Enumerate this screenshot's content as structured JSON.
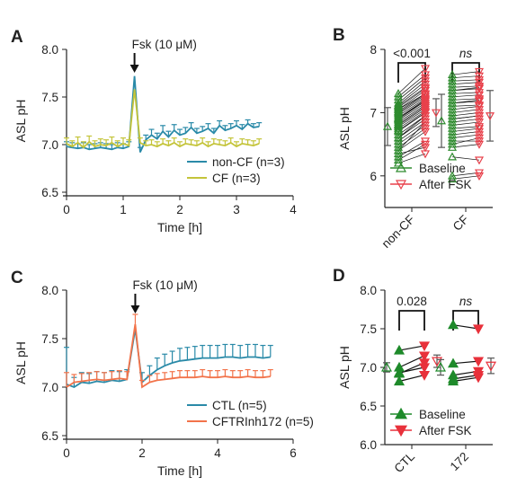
{
  "colors": {
    "non_cf": "#2a8aa8",
    "cf": "#c4c43a",
    "ctl": "#2a8aa8",
    "cftrinh": "#f2734a",
    "baseline": "#2e8b2e",
    "after": "#e8414b",
    "dark_green": "#1e8a2a",
    "dark_red": "#e8313b",
    "axis": "#222222",
    "summary": "#555555"
  },
  "icons": {
    "arrow": "down-arrow-icon"
  },
  "chart_data": [
    {
      "id": "A",
      "panel_label": "A",
      "type": "line",
      "xlabel": "Time [h]",
      "ylabel": "ASL pH",
      "xlim": [
        0,
        4
      ],
      "ylim": [
        6.5,
        8.0
      ],
      "xticks": [
        "0",
        "1",
        "2",
        "3",
        "4"
      ],
      "yticks": [
        "6.5",
        "7.0",
        "7.5",
        "8.0"
      ],
      "annotation": "Fsk (10 μM)",
      "annotation_x": 1.2,
      "series": [
        {
          "name": "non-CF (n=3)",
          "color_key": "non_cf",
          "x": [
            0.0,
            0.1,
            0.2,
            0.3,
            0.4,
            0.5,
            0.6,
            0.7,
            0.8,
            0.9,
            1.0,
            1.1,
            1.2,
            1.3,
            1.4,
            1.5,
            1.6,
            1.7,
            1.8,
            1.9,
            2.0,
            2.1,
            2.2,
            2.3,
            2.4,
            2.5,
            2.6,
            2.7,
            2.8,
            2.9,
            3.0,
            3.1,
            3.2,
            3.3,
            3.4
          ],
          "y": [
            6.98,
            6.97,
            6.96,
            6.97,
            6.95,
            6.96,
            6.97,
            6.96,
            6.95,
            6.97,
            6.96,
            6.98,
            7.72,
            6.92,
            7.05,
            7.1,
            7.06,
            7.14,
            7.08,
            7.15,
            7.1,
            7.12,
            7.18,
            7.12,
            7.14,
            7.17,
            7.12,
            7.2,
            7.15,
            7.17,
            7.2,
            7.16,
            7.22,
            7.18,
            7.19
          ],
          "err_up": [
            0.05,
            0.05,
            0.05,
            0.05,
            0.05,
            0.05,
            0.05,
            0.05,
            0.05,
            0.05,
            0.05,
            0.05,
            0.0,
            0.05,
            0.05,
            0.06,
            0.06,
            0.06,
            0.06,
            0.06,
            0.06,
            0.06,
            0.05,
            0.05,
            0.05,
            0.05,
            0.05,
            0.05,
            0.05,
            0.05,
            0.05,
            0.05,
            0.04,
            0.04,
            0.04
          ]
        },
        {
          "name": "CF (n=3)",
          "color_key": "cf",
          "x": [
            0.0,
            0.1,
            0.2,
            0.3,
            0.4,
            0.5,
            0.6,
            0.7,
            0.8,
            0.9,
            1.0,
            1.1,
            1.2,
            1.3,
            1.4,
            1.5,
            1.6,
            1.7,
            1.8,
            1.9,
            2.0,
            2.1,
            2.2,
            2.3,
            2.4,
            2.5,
            2.6,
            2.7,
            2.8,
            2.9,
            3.0,
            3.1,
            3.2,
            3.3,
            3.4
          ],
          "y": [
            7.01,
            6.98,
            7.02,
            6.97,
            7.03,
            6.98,
            7.0,
            6.99,
            7.02,
            6.98,
            7.01,
            6.99,
            7.58,
            7.02,
            6.99,
            7.0,
            6.98,
            7.01,
            6.99,
            7.02,
            6.98,
            7.01,
            7.0,
            6.99,
            7.02,
            6.98,
            7.01,
            7.0,
            6.99,
            7.02,
            6.98,
            7.01,
            7.0,
            6.99,
            7.01
          ],
          "err_up": [
            0.06,
            0.06,
            0.06,
            0.06,
            0.06,
            0.06,
            0.06,
            0.06,
            0.06,
            0.06,
            0.06,
            0.06,
            0.0,
            0.05,
            0.05,
            0.05,
            0.05,
            0.05,
            0.05,
            0.05,
            0.05,
            0.05,
            0.05,
            0.05,
            0.05,
            0.05,
            0.05,
            0.05,
            0.05,
            0.05,
            0.05,
            0.05,
            0.05,
            0.05,
            0.05
          ]
        }
      ],
      "legend_position": "bottom-right"
    },
    {
      "id": "B",
      "panel_label": "B",
      "type": "scatter",
      "ylabel": "ASL pH",
      "ylim": [
        5.5,
        8.0
      ],
      "yticks": [
        "6",
        "7",
        "8"
      ],
      "categories": [
        "non-CF",
        "CF"
      ],
      "brackets": [
        {
          "text": "<0.001",
          "category": 0,
          "italic": false
        },
        {
          "text": "ns",
          "category": 1,
          "italic": true
        }
      ],
      "series": [
        {
          "name": "Baseline",
          "color_key": "baseline"
        },
        {
          "name": "After FSK",
          "color_key": "after"
        }
      ],
      "summary": [
        {
          "category": 0,
          "baseline_mean": 6.78,
          "baseline_sd": 0.3,
          "after_mean": 7.0,
          "after_sd": 0.22
        },
        {
          "category": 1,
          "baseline_mean": 6.87,
          "baseline_sd": 0.42,
          "after_mean": 6.95,
          "after_sd": 0.4
        }
      ],
      "pairs": [
        {
          "category": 0,
          "baseline": [
            6.2,
            6.3,
            6.4,
            6.45,
            6.5,
            6.55,
            6.6,
            6.65,
            6.7,
            6.72,
            6.75,
            6.78,
            6.8,
            6.82,
            6.85,
            6.88,
            6.9,
            6.92,
            6.95,
            6.98,
            7.0,
            7.02,
            7.05,
            7.08,
            7.1,
            7.12,
            7.15,
            7.2,
            7.25,
            7.3,
            6.25,
            6.4,
            6.6,
            6.9,
            7.05,
            6.35
          ],
          "after": [
            6.35,
            6.55,
            6.7,
            6.75,
            6.8,
            6.85,
            6.9,
            6.95,
            7.0,
            7.0,
            7.02,
            7.05,
            7.08,
            7.1,
            7.12,
            7.15,
            7.18,
            7.2,
            7.22,
            7.25,
            7.28,
            7.3,
            7.35,
            7.38,
            7.4,
            7.45,
            7.5,
            7.55,
            7.6,
            7.7,
            6.5,
            6.85,
            6.95,
            7.2,
            7.3,
            6.45
          ]
        },
        {
          "category": 1,
          "baseline": [
            5.95,
            6.0,
            6.3,
            6.45,
            6.55,
            6.6,
            6.65,
            6.7,
            6.75,
            6.8,
            6.85,
            6.9,
            6.95,
            7.0,
            7.05,
            7.1,
            7.15,
            7.2,
            7.25,
            7.3,
            7.35,
            7.4,
            7.45,
            7.5,
            7.55,
            7.6,
            6.5,
            6.9,
            7.15,
            7.35
          ],
          "after": [
            6.0,
            6.05,
            6.25,
            6.5,
            6.55,
            6.65,
            6.7,
            6.75,
            6.78,
            6.85,
            6.9,
            6.95,
            7.0,
            7.05,
            7.1,
            7.12,
            7.18,
            7.22,
            7.28,
            7.32,
            7.38,
            7.42,
            7.48,
            7.52,
            7.58,
            7.65,
            6.6,
            6.95,
            7.2,
            7.4
          ]
        }
      ],
      "legend_position": "bottom"
    },
    {
      "id": "C",
      "panel_label": "C",
      "type": "line",
      "xlabel": "Time [h]",
      "ylabel": "ASL pH",
      "xlim": [
        0,
        6
      ],
      "ylim": [
        6.5,
        8.0
      ],
      "xticks": [
        "0",
        "2",
        "4",
        "6"
      ],
      "yticks": [
        "6.5",
        "7.0",
        "7.5",
        "8.0"
      ],
      "annotation": "Fsk (10 μM)",
      "annotation_x": 1.82,
      "series": [
        {
          "name": "CTL     (n=5)",
          "color_key": "ctl",
          "x": [
            0.0,
            0.2,
            0.4,
            0.6,
            0.8,
            1.0,
            1.2,
            1.4,
            1.6,
            1.82,
            2.0,
            2.2,
            2.4,
            2.6,
            2.8,
            3.0,
            3.2,
            3.4,
            3.6,
            3.8,
            4.0,
            4.2,
            4.4,
            4.6,
            4.8,
            5.0,
            5.2,
            5.4
          ],
          "y": [
            7.03,
            7.0,
            7.05,
            7.04,
            7.06,
            7.05,
            7.07,
            7.06,
            7.08,
            7.6,
            7.05,
            7.12,
            7.18,
            7.22,
            7.25,
            7.27,
            7.28,
            7.29,
            7.3,
            7.3,
            7.3,
            7.31,
            7.31,
            7.3,
            7.31,
            7.31,
            7.3,
            7.31
          ],
          "err_up": [
            0.38,
            0.1,
            0.1,
            0.1,
            0.1,
            0.1,
            0.1,
            0.1,
            0.1,
            0.0,
            0.1,
            0.1,
            0.12,
            0.12,
            0.12,
            0.13,
            0.13,
            0.13,
            0.13,
            0.13,
            0.13,
            0.13,
            0.13,
            0.13,
            0.13,
            0.13,
            0.13,
            0.12
          ]
        },
        {
          "name": "CFTRInh172 (n=5)",
          "color_key": "cftrinh",
          "x": [
            0.0,
            0.2,
            0.4,
            0.6,
            0.8,
            1.0,
            1.2,
            1.4,
            1.6,
            1.82,
            2.0,
            2.2,
            2.4,
            2.6,
            2.8,
            3.0,
            3.2,
            3.4,
            3.6,
            3.8,
            4.0,
            4.2,
            4.4,
            4.6,
            4.8,
            5.0,
            5.2,
            5.4
          ],
          "y": [
            7.0,
            7.05,
            7.06,
            7.07,
            7.08,
            7.07,
            7.08,
            7.09,
            7.08,
            7.65,
            7.0,
            7.05,
            7.07,
            7.08,
            7.09,
            7.1,
            7.1,
            7.1,
            7.11,
            7.1,
            7.1,
            7.11,
            7.1,
            7.1,
            7.11,
            7.1,
            7.1,
            7.11
          ],
          "err_up": [
            0.15,
            0.08,
            0.08,
            0.08,
            0.08,
            0.08,
            0.08,
            0.08,
            0.08,
            0.1,
            0.07,
            0.07,
            0.07,
            0.07,
            0.07,
            0.07,
            0.07,
            0.07,
            0.07,
            0.07,
            0.07,
            0.07,
            0.07,
            0.07,
            0.07,
            0.07,
            0.07,
            0.07
          ]
        }
      ],
      "legend_position": "bottom-right"
    },
    {
      "id": "D",
      "panel_label": "D",
      "type": "scatter",
      "ylabel": "ASL pH",
      "ylim": [
        6.0,
        8.0
      ],
      "yticks": [
        "6.0",
        "6.5",
        "7.0",
        "7.5",
        "8.0"
      ],
      "categories": [
        "CTL",
        "172"
      ],
      "brackets": [
        {
          "text": "0.028",
          "category": 0,
          "italic": false
        },
        {
          "text": "ns",
          "category": 1,
          "italic": true
        }
      ],
      "series": [
        {
          "name": "Baseline",
          "color_key": "dark_green"
        },
        {
          "name": "After FSK",
          "color_key": "dark_red"
        }
      ],
      "summary": [
        {
          "category": 0,
          "baseline_mean": 7.0,
          "baseline_sd": 0.06,
          "after_mean": 7.08,
          "after_sd": 0.08
        },
        {
          "category": 1,
          "baseline_mean": 7.0,
          "baseline_sd": 0.1,
          "after_mean": 7.02,
          "after_sd": 0.1
        }
      ],
      "pairs": [
        {
          "category": 0,
          "baseline": [
            7.22,
            7.0,
            6.93,
            6.92,
            6.82
          ],
          "after": [
            7.28,
            7.15,
            7.0,
            7.06,
            6.9
          ]
        },
        {
          "category": 1,
          "baseline": [
            7.55,
            7.05,
            6.9,
            6.85,
            6.82
          ],
          "after": [
            7.5,
            7.08,
            6.95,
            6.9,
            6.87
          ]
        }
      ],
      "legend_position": "bottom"
    }
  ]
}
